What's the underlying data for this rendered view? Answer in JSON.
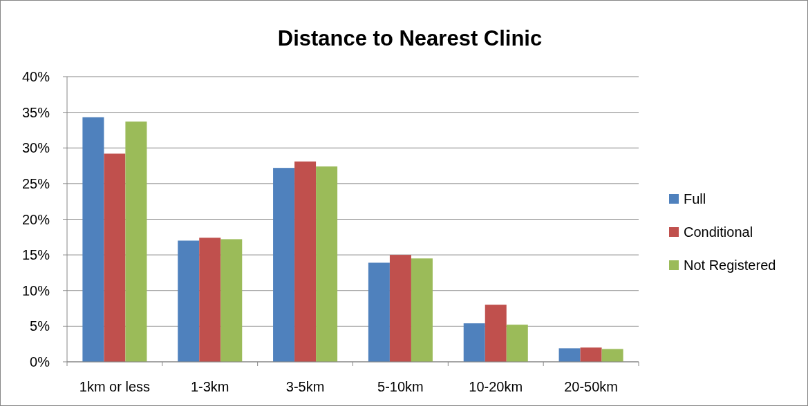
{
  "chart_data": {
    "type": "bar",
    "title": "Distance to Nearest Clinic",
    "categories": [
      "1km or less",
      "1-3km",
      "3-5km",
      "5-10km",
      "10-20km",
      "20-50km"
    ],
    "series": [
      {
        "name": "Full",
        "color": "#4f81bd",
        "values": [
          34.3,
          17.0,
          27.2,
          13.9,
          5.4,
          1.9
        ]
      },
      {
        "name": "Conditional",
        "color": "#c0504d",
        "values": [
          29.2,
          17.4,
          28.1,
          15.0,
          8.0,
          2.0
        ]
      },
      {
        "name": "Not Registered",
        "color": "#9bbb59",
        "values": [
          33.7,
          17.2,
          27.4,
          14.5,
          5.2,
          1.8
        ]
      }
    ],
    "ylim": [
      0,
      40
    ],
    "yticks": [
      {
        "value": 0,
        "label": "0%"
      },
      {
        "value": 5,
        "label": "5%"
      },
      {
        "value": 10,
        "label": "10%"
      },
      {
        "value": 15,
        "label": "15%"
      },
      {
        "value": 20,
        "label": "20%"
      },
      {
        "value": 25,
        "label": "25%"
      },
      {
        "value": 30,
        "label": "30%"
      },
      {
        "value": 35,
        "label": "35%"
      },
      {
        "value": 40,
        "label": "40%"
      }
    ],
    "grid": "y",
    "legend": "right"
  }
}
